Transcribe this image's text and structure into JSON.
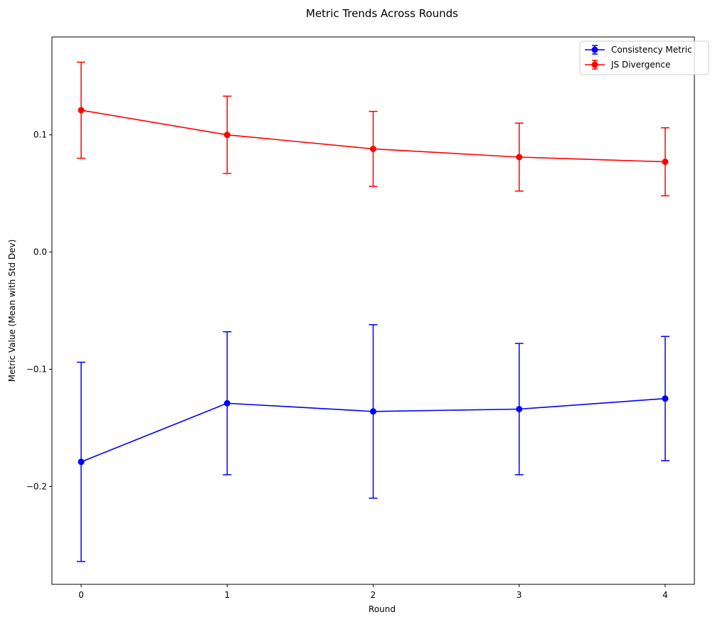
{
  "chart_data": {
    "type": "line",
    "title": "Metric Trends Across Rounds",
    "xlabel": "Round",
    "ylabel": "Metric Value (Mean with Std Dev)",
    "x": [
      0,
      1,
      2,
      3,
      4
    ],
    "xlim": [
      -0.2,
      4.2
    ],
    "ylim": [
      -0.2835,
      0.1835
    ],
    "xticks": [
      0,
      1,
      2,
      3,
      4
    ],
    "yticks": [
      -0.2,
      -0.1,
      0.0,
      0.1
    ],
    "ytick_labels": [
      "−0.2",
      "−0.1",
      "0.0",
      "0.1"
    ],
    "xtick_labels": [
      "0",
      "1",
      "2",
      "3",
      "4"
    ],
    "grid": false,
    "legend_position": "top-right",
    "series": [
      {
        "name": "Consistency Metric",
        "color": "#0000ff",
        "marker": "circle",
        "values": [
          -0.179,
          -0.129,
          -0.136,
          -0.134,
          -0.125
        ],
        "std": [
          0.085,
          0.061,
          0.074,
          0.056,
          0.053
        ]
      },
      {
        "name": "JS Divergence",
        "color": "#ff0000",
        "marker": "circle",
        "values": [
          0.121,
          0.1,
          0.088,
          0.081,
          0.077
        ],
        "std": [
          0.041,
          0.033,
          0.032,
          0.029,
          0.029
        ]
      }
    ]
  }
}
